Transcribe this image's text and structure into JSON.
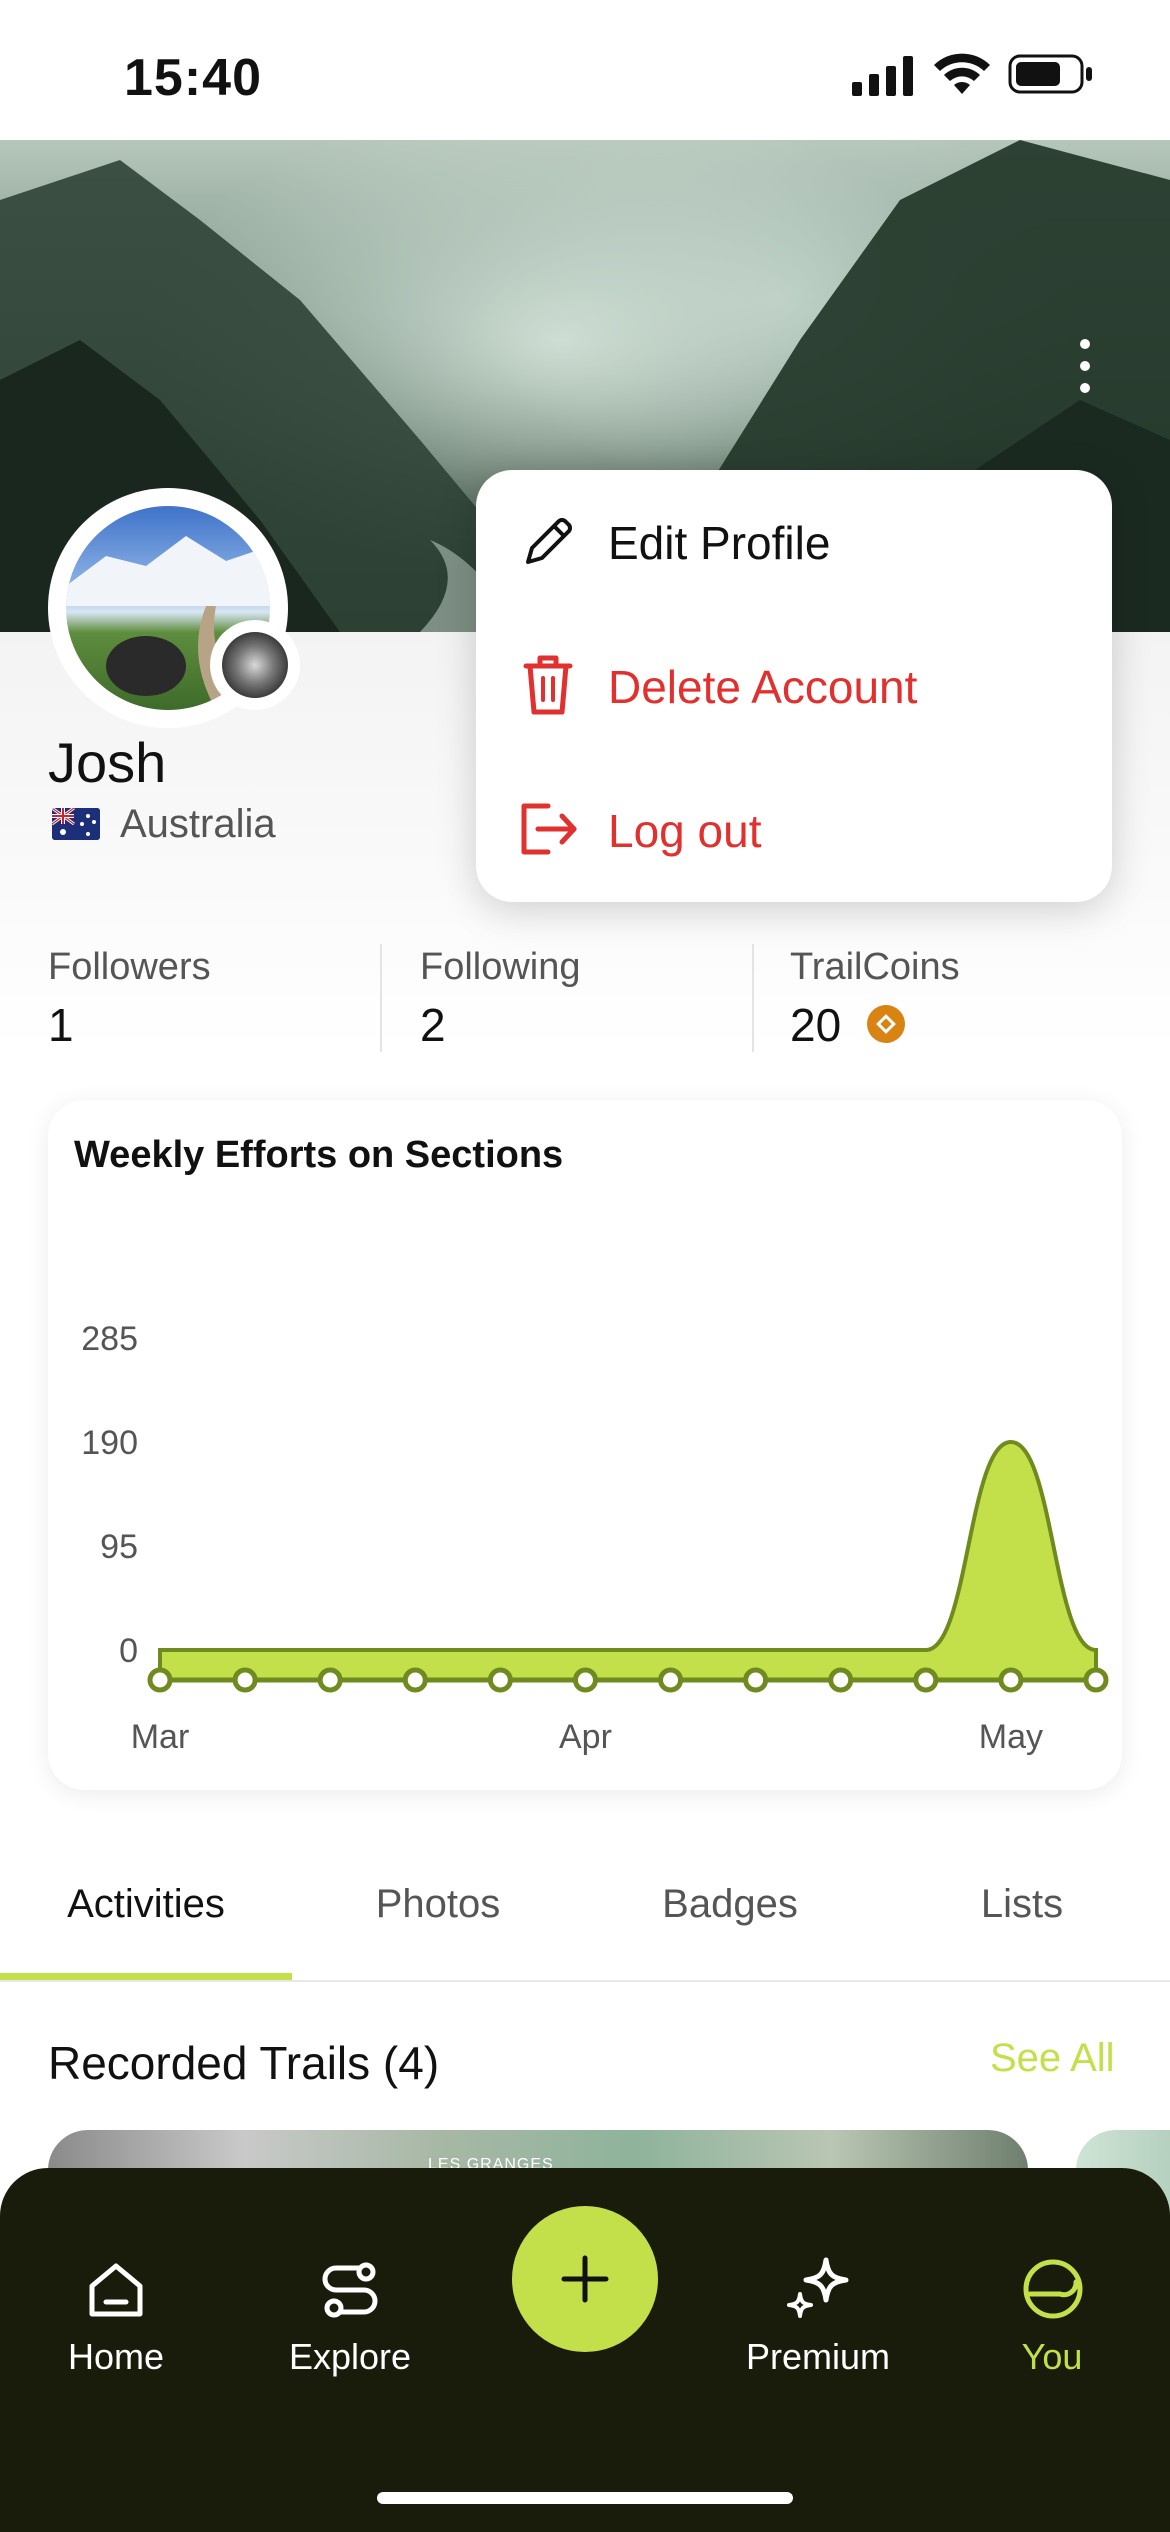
{
  "status_bar": {
    "time": "15:40"
  },
  "profile": {
    "name": "Josh",
    "country": "Australia"
  },
  "stats": [
    {
      "label": "Followers",
      "value": "1"
    },
    {
      "label": "Following",
      "value": "2"
    },
    {
      "label": "TrailCoins",
      "value": "20"
    }
  ],
  "menu": {
    "edit": "Edit Profile",
    "delete": "Delete Account",
    "logout": "Log out"
  },
  "chart_data": {
    "type": "area",
    "title": "Weekly Efforts on Sections",
    "x_tick_labels": [
      "Mar",
      "Apr",
      "May"
    ],
    "y_ticks": [
      0,
      95,
      190,
      285
    ],
    "ylim": [
      0,
      285
    ],
    "values": [
      0,
      0,
      0,
      0,
      0,
      0,
      0,
      0,
      0,
      0,
      190,
      0
    ],
    "colors": {
      "fill": "#c3e04a",
      "line": "#6f8a1e"
    }
  },
  "tabs": [
    "Activities",
    "Photos",
    "Badges",
    "Lists"
  ],
  "trails": {
    "title": "Recorded Trails (4)",
    "see_all": "See All",
    "map_label": "LES GRANGES"
  },
  "nav": [
    "Home",
    "Explore",
    "Premium",
    "You"
  ],
  "colors": {
    "accent": "#c3e04a",
    "danger": "#e0312f",
    "nav_bg": "#191c0a"
  }
}
